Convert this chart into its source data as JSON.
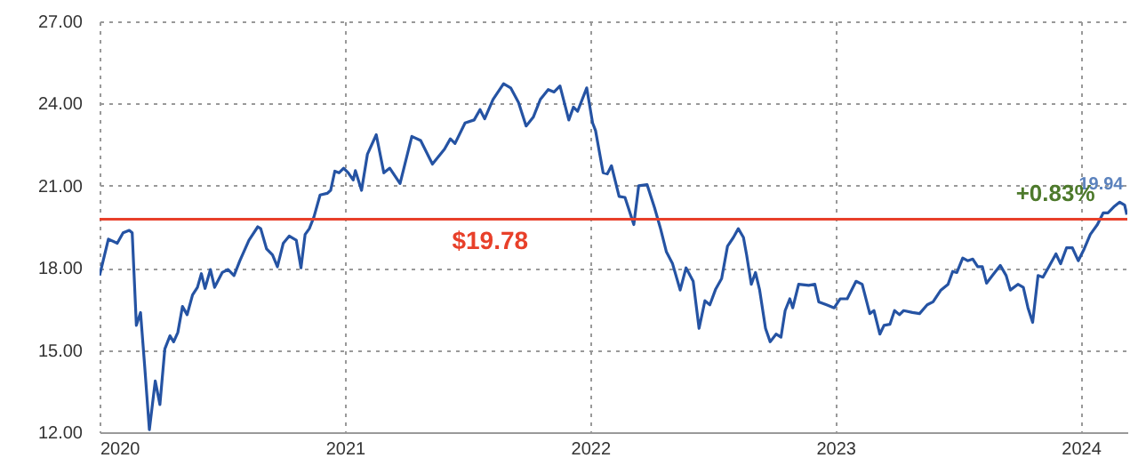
{
  "chart_data": {
    "type": "line",
    "x": [
      2020.0,
      2020.036,
      2020.072,
      2020.096,
      2020.121,
      2020.133,
      2020.15,
      2020.167,
      2020.184,
      2020.203,
      2020.227,
      2020.246,
      2020.266,
      2020.287,
      2020.302,
      2020.319,
      2020.338,
      2020.357,
      2020.379,
      2020.399,
      2020.415,
      2020.43,
      2020.452,
      2020.469,
      2020.5,
      2020.524,
      2020.548,
      2020.572,
      2020.609,
      2020.645,
      2020.657,
      2020.681,
      2020.705,
      2020.725,
      2020.749,
      2020.773,
      2020.802,
      2020.821,
      2020.838,
      2020.855,
      2020.874,
      2020.899,
      2020.928,
      2020.942,
      2020.959,
      2020.976,
      2020.995,
      2021.014,
      2021.034,
      2021.043,
      2021.068,
      2021.092,
      2021.128,
      2021.159,
      2021.183,
      2021.225,
      2021.273,
      2021.309,
      2021.357,
      2021.406,
      2021.43,
      2021.449,
      2021.49,
      2021.527,
      2021.551,
      2021.57,
      2021.604,
      2021.647,
      2021.676,
      2021.708,
      2021.739,
      2021.768,
      2021.797,
      2021.829,
      2021.853,
      2021.877,
      2021.913,
      2021.932,
      2021.949,
      2021.986,
      2022.01,
      2022.022,
      2022.053,
      2022.07,
      2022.087,
      2022.118,
      2022.142,
      2022.178,
      2022.198,
      2022.232,
      2022.263,
      2022.287,
      2022.311,
      2022.336,
      2022.367,
      2022.391,
      2022.42,
      2022.444,
      2022.468,
      2022.488,
      2022.512,
      2022.536,
      2022.56,
      2022.584,
      2022.604,
      2022.625,
      2022.638,
      2022.657,
      2022.674,
      2022.691,
      2022.715,
      2022.734,
      2022.758,
      2022.778,
      2022.795,
      2022.814,
      2022.826,
      2022.85,
      2022.891,
      2022.916,
      2022.932,
      2022.964,
      2022.995,
      2023.019,
      2023.048,
      2023.084,
      2023.109,
      2023.14,
      2023.157,
      2023.181,
      2023.198,
      2023.222,
      2023.241,
      2023.261,
      2023.278,
      2023.314,
      2023.343,
      2023.374,
      2023.398,
      2023.43,
      2023.459,
      2023.478,
      2023.495,
      2023.519,
      2023.539,
      2023.56,
      2023.58,
      2023.599,
      2023.616,
      2023.64,
      2023.672,
      2023.696,
      2023.713,
      2023.744,
      2023.766,
      2023.785,
      2023.804,
      2023.826,
      2023.846,
      2023.87,
      2023.899,
      2023.918,
      2023.942,
      2023.966,
      2023.99,
      2024.014,
      2024.039,
      2024.068,
      2024.092,
      2024.111,
      2024.135,
      2024.159,
      2024.179,
      2024.188
    ],
    "series": [
      {
        "color": "#2553a3",
        "values": [
          17.72,
          19.05,
          18.9,
          19.28,
          19.37,
          19.28,
          15.9,
          16.37,
          14.4,
          12.09,
          13.87,
          13.01,
          15.04,
          15.52,
          15.3,
          15.64,
          16.59,
          16.29,
          17.01,
          17.29,
          17.79,
          17.25,
          17.94,
          17.29,
          17.83,
          17.94,
          17.72,
          18.26,
          19.01,
          19.5,
          19.43,
          18.69,
          18.47,
          18.04,
          18.9,
          19.16,
          19.01,
          18.0,
          19.22,
          19.43,
          19.86,
          20.66,
          20.72,
          20.83,
          21.53,
          21.47,
          21.64,
          21.47,
          21.21,
          21.55,
          20.83,
          22.15,
          22.86,
          21.47,
          21.64,
          21.08,
          22.8,
          22.65,
          21.79,
          22.33,
          22.71,
          22.54,
          23.29,
          23.4,
          23.78,
          23.44,
          24.15,
          24.72,
          24.57,
          24.04,
          23.18,
          23.5,
          24.15,
          24.51,
          24.42,
          24.64,
          23.4,
          23.87,
          23.72,
          24.57,
          23.29,
          23.01,
          21.47,
          21.43,
          21.73,
          20.61,
          20.57,
          19.58,
          21.0,
          21.04,
          20.18,
          19.43,
          18.58,
          18.15,
          17.19,
          18.0,
          17.51,
          15.79,
          16.8,
          16.65,
          17.23,
          17.61,
          18.79,
          19.11,
          19.43,
          19.11,
          18.47,
          17.4,
          17.83,
          17.19,
          15.79,
          15.3,
          15.58,
          15.47,
          16.44,
          16.87,
          16.54,
          17.4,
          17.36,
          17.4,
          16.76,
          16.65,
          16.54,
          16.87,
          16.87,
          17.51,
          17.4,
          16.33,
          16.44,
          15.58,
          15.9,
          15.94,
          16.44,
          16.29,
          16.44,
          16.37,
          16.33,
          16.65,
          16.76,
          17.19,
          17.4,
          17.87,
          17.83,
          18.36,
          18.26,
          18.32,
          18.04,
          18.04,
          17.44,
          17.72,
          18.09,
          17.72,
          17.19,
          17.4,
          17.29,
          16.54,
          16.01,
          17.72,
          17.66,
          18.04,
          18.51,
          18.15,
          18.73,
          18.73,
          18.26,
          18.69,
          19.22,
          19.58,
          20.01,
          20.01,
          20.23,
          20.4,
          20.29,
          19.94
        ]
      }
    ],
    "xlim": [
      2020,
      2024.19
    ],
    "xticks": [
      2020,
      2021,
      2022,
      2023,
      2024
    ],
    "ylim": [
      12,
      27
    ],
    "yticks": [
      {
        "value": 12,
        "label": "12.00"
      },
      {
        "value": 15,
        "label": "15.00"
      },
      {
        "value": 18,
        "label": "18.00"
      },
      {
        "value": 21,
        "label": "21.00"
      },
      {
        "value": 24,
        "label": "24.00"
      },
      {
        "value": 27,
        "label": "27.00"
      }
    ],
    "grid": true,
    "ref_lines": [
      {
        "axis": "y",
        "value": 19.78,
        "label": "$19.78",
        "color": "#e8402a"
      }
    ],
    "annotations": [
      {
        "text": "19.94",
        "x": 2024.188,
        "y": 19.94
      },
      "+0.83%"
    ]
  }
}
